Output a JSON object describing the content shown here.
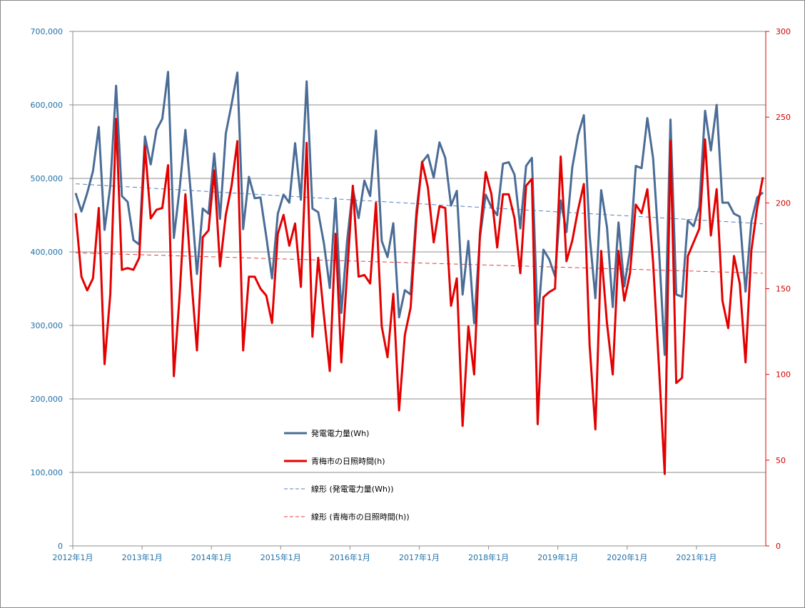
{
  "chart_data": {
    "type": "line",
    "title": "",
    "x": [
      "2012-01",
      "2012-02",
      "2012-03",
      "2012-04",
      "2012-05",
      "2012-06",
      "2012-07",
      "2012-08",
      "2012-09",
      "2012-10",
      "2012-11",
      "2012-12",
      "2013-01",
      "2013-02",
      "2013-03",
      "2013-04",
      "2013-05",
      "2013-06",
      "2013-07",
      "2013-08",
      "2013-09",
      "2013-10",
      "2013-11",
      "2013-12",
      "2014-01",
      "2014-02",
      "2014-03",
      "2014-04",
      "2014-05",
      "2014-06",
      "2014-07",
      "2014-08",
      "2014-09",
      "2014-10",
      "2014-11",
      "2014-12",
      "2015-01",
      "2015-02",
      "2015-03",
      "2015-04",
      "2015-05",
      "2015-06",
      "2015-07",
      "2015-08",
      "2015-09",
      "2015-10",
      "2015-11",
      "2015-12",
      "2016-01",
      "2016-02",
      "2016-03",
      "2016-04",
      "2016-05",
      "2016-06",
      "2016-07",
      "2016-08",
      "2016-09",
      "2016-10",
      "2016-11",
      "2016-12",
      "2017-01",
      "2017-02",
      "2017-03",
      "2017-04",
      "2017-05",
      "2017-06",
      "2017-07",
      "2017-08",
      "2017-09",
      "2017-10",
      "2017-11",
      "2017-12",
      "2018-01",
      "2018-02",
      "2018-03",
      "2018-04",
      "2018-05",
      "2018-06",
      "2018-07",
      "2018-08",
      "2018-09",
      "2018-10",
      "2018-11",
      "2018-12",
      "2019-01",
      "2019-02",
      "2019-03",
      "2019-04",
      "2019-05",
      "2019-06",
      "2019-07",
      "2019-08",
      "2019-09",
      "2019-10",
      "2019-11",
      "2019-12",
      "2020-01",
      "2020-02",
      "2020-03",
      "2020-04",
      "2020-05",
      "2020-06",
      "2020-07",
      "2020-08",
      "2020-09",
      "2020-10",
      "2020-11",
      "2020-12",
      "2021-01",
      "2021-02",
      "2021-03",
      "2021-04",
      "2021-05",
      "2021-06",
      "2021-07",
      "2021-08",
      "2021-09",
      "2021-10",
      "2021-11",
      "2021-12"
    ],
    "xticks": [
      "2012年1月",
      "2013年1月",
      "2014年1月",
      "2015年1月",
      "2016年1月",
      "2017年1月",
      "2018年1月",
      "2019年1月",
      "2020年1月",
      "2021年1月"
    ],
    "y_left": {
      "min": 0,
      "max": 700000,
      "step": 100000,
      "ticks": [
        "0",
        "100,000",
        "200,000",
        "300,000",
        "400,000",
        "500,000",
        "600,000",
        "700,000"
      ]
    },
    "y_right": {
      "min": 0,
      "max": 300,
      "step": 50,
      "ticks": [
        "0",
        "50",
        "100",
        "150",
        "200",
        "250",
        "300"
      ]
    },
    "grid": true,
    "legend_position": "lower-center",
    "series": [
      {
        "name": "発電電力量(Wh)",
        "axis": "left",
        "color": "#4a6c96",
        "style": "solid",
        "values": [
          480000,
          455000,
          480000,
          510000,
          570000,
          430000,
          490000,
          626000,
          476000,
          468000,
          416000,
          410000,
          557000,
          519000,
          566000,
          581000,
          645000,
          419000,
          486000,
          566000,
          474000,
          370000,
          459000,
          452000,
          534000,
          445000,
          561000,
          601000,
          644000,
          431000,
          502000,
          473000,
          474000,
          421000,
          364000,
          452000,
          478000,
          467000,
          548000,
          471000,
          632000,
          459000,
          454000,
          411000,
          351000,
          473000,
          317000,
          415000,
          486000,
          446000,
          497000,
          476000,
          565000,
          415000,
          393000,
          439000,
          311000,
          348000,
          342000,
          455000,
          522000,
          532000,
          501000,
          549000,
          528000,
          463000,
          483000,
          342000,
          415000,
          303000,
          420000,
          478000,
          461000,
          450000,
          520000,
          522000,
          505000,
          432000,
          517000,
          528000,
          302000,
          403000,
          390000,
          367000,
          470000,
          427000,
          515000,
          559000,
          586000,
          423000,
          337000,
          484000,
          434000,
          325000,
          440000,
          353000,
          402000,
          517000,
          514000,
          582000,
          527000,
          405000,
          260000,
          580000,
          342000,
          339000,
          443000,
          435000,
          461000,
          592000,
          538000,
          600000,
          467000,
          467000,
          452000,
          448000,
          346000,
          441000,
          474000,
          481000
        ]
      },
      {
        "name": "青梅市の日照時間(h)",
        "axis": "right",
        "color": "#e30000",
        "style": "solid",
        "values": [
          194,
          157,
          149,
          156,
          197,
          106,
          147,
          249,
          161,
          162,
          161,
          168,
          233,
          191,
          196,
          197,
          222,
          99,
          146,
          205,
          157,
          114,
          180,
          184,
          219,
          163,
          193,
          210,
          236,
          114,
          157,
          157,
          150,
          146,
          130,
          182,
          193,
          175,
          188,
          151,
          235,
          122,
          168,
          134,
          102,
          182,
          107,
          159,
          210,
          157,
          158,
          153,
          200,
          128,
          110,
          147,
          79,
          123,
          139,
          191,
          224,
          209,
          177,
          198,
          197,
          140,
          156,
          70,
          128,
          100,
          182,
          218,
          205,
          174,
          205,
          205,
          191,
          159,
          210,
          214,
          71,
          145,
          148,
          150,
          227,
          166,
          178,
          196,
          211,
          117,
          68,
          172,
          130,
          100,
          172,
          143,
          159,
          199,
          194,
          208,
          165,
          105,
          42,
          236,
          95,
          98,
          169,
          177,
          185,
          237,
          181,
          208,
          143,
          127,
          169,
          153,
          107,
          172,
          197,
          215
        ]
      },
      {
        "name": "線形 (発電電力量(Wh))",
        "axis": "left",
        "color": "#4f81bd",
        "style": "dashed",
        "trend_of": 0
      },
      {
        "name": "線形 (青梅市の日照時間(h))",
        "axis": "right",
        "color": "#e04040",
        "style": "dashed",
        "trend_of": 1
      }
    ]
  }
}
